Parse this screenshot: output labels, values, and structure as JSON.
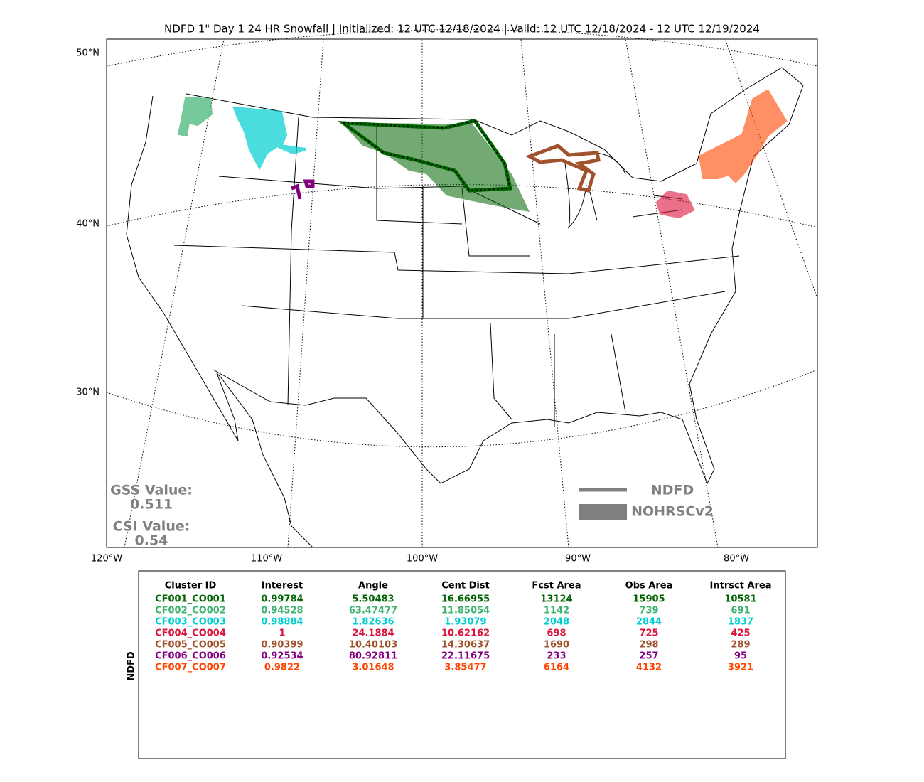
{
  "title": "NDFD 1\" Day 1 24 HR Snowfall | Initialized: 12 UTC 12/18/2024 | Valid: 12 UTC 12/18/2024 - 12 UTC 12/19/2024",
  "map": {
    "lat_labels": [
      "50°N",
      "40°N",
      "30°N"
    ],
    "lon_labels": [
      "120°W",
      "110°W",
      "100°W",
      "90°W",
      "80°W"
    ]
  },
  "scores": {
    "gss_label": "GSS Value:",
    "gss": "0.511",
    "csi_label": "CSI Value:",
    "csi": "0.54"
  },
  "legend": [
    "NDFD",
    "NOHRSCv2"
  ],
  "table": {
    "side_label": "NDFD",
    "columns": [
      "Cluster ID",
      "Interest",
      "Angle",
      "Cent Dist",
      "Fcst Area",
      "Obs Area",
      "Intrsct Area"
    ],
    "rows": [
      {
        "color": "#006400",
        "cells": [
          "CF001_CO001",
          "0.99784",
          "5.50483",
          "16.66955",
          "13124",
          "15905",
          "10581"
        ]
      },
      {
        "color": "#3cb371",
        "cells": [
          "CF002_CO002",
          "0.94528",
          "63.47477",
          "11.85054",
          "1142",
          "739",
          "691"
        ]
      },
      {
        "color": "#00ced1",
        "cells": [
          "CF003_CO003",
          "0.98884",
          "1.82636",
          "1.93079",
          "2048",
          "2844",
          "1837"
        ]
      },
      {
        "color": "#dc143c",
        "cells": [
          "CF004_CO004",
          "1",
          "24.1884",
          "10.62162",
          "698",
          "725",
          "425"
        ]
      },
      {
        "color": "#a0522d",
        "cells": [
          "CF005_CO005",
          "0.90399",
          "10.40103",
          "14.30637",
          "1690",
          "298",
          "289"
        ]
      },
      {
        "color": "#800080",
        "cells": [
          "CF006_CO006",
          "0.92534",
          "80.92811",
          "22.11675",
          "233",
          "257",
          "95"
        ]
      },
      {
        "color": "#ff4500",
        "cells": [
          "CF007_CO007",
          "0.9822",
          "3.01648",
          "3.85477",
          "6164",
          "4132",
          "3921"
        ]
      }
    ]
  }
}
